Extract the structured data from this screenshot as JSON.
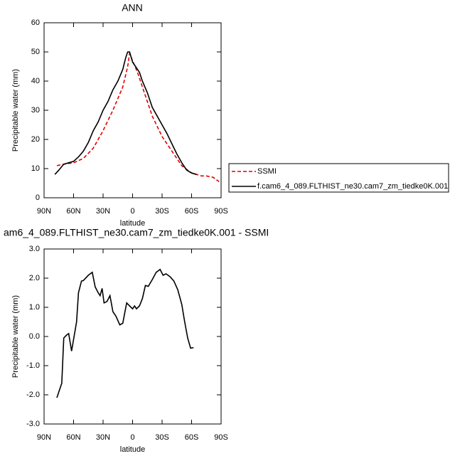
{
  "chart_data": [
    {
      "type": "line",
      "title": "ANN",
      "ylabel": "Precipitable water (mm)",
      "xlabel": "latitude",
      "xlim": [
        90,
        -90
      ],
      "ylim": [
        0,
        60
      ],
      "xticks": [
        {
          "value": 90,
          "label": "90N"
        },
        {
          "value": 60,
          "label": "60N"
        },
        {
          "value": 30,
          "label": "30N"
        },
        0,
        {
          "value": -30,
          "label": "30S"
        },
        {
          "value": -60,
          "label": "60S"
        },
        {
          "value": -90,
          "label": "90S"
        }
      ],
      "yticks": [
        0,
        10,
        20,
        30,
        40,
        50,
        60
      ],
      "series": [
        {
          "name": "SSMI",
          "color": "#e00000",
          "dashed": true,
          "x": [
            77,
            70,
            60,
            50,
            40,
            30,
            20,
            10,
            5,
            3,
            0,
            -5,
            -10,
            -20,
            -30,
            -40,
            -50,
            -60,
            -65,
            -70,
            -75,
            -82,
            -88
          ],
          "values": [
            11,
            11.5,
            12,
            13.5,
            17,
            23,
            30,
            38,
            45,
            49.5,
            47,
            43,
            38,
            28,
            21,
            16,
            11,
            8.5,
            8,
            7.5,
            7.5,
            7,
            5.5
          ]
        },
        {
          "name": "f.cam6_4_089.FLTHIST_ne30.cam7_zm_tiedke0K.001",
          "color": "#000000",
          "dashed": false,
          "x": [
            79,
            75,
            70,
            65,
            60,
            55,
            50,
            45,
            40,
            35,
            30,
            25,
            20,
            15,
            10,
            7,
            5,
            3,
            0,
            -3,
            -7,
            -10,
            -15,
            -20,
            -25,
            -30,
            -35,
            -40,
            -45,
            -50,
            -55,
            -60,
            -65
          ],
          "values": [
            8,
            9.5,
            11.5,
            12,
            12.5,
            14,
            16,
            19,
            23,
            26,
            30,
            33,
            37,
            40,
            44,
            48,
            50,
            50,
            46.5,
            45,
            43,
            40,
            36,
            31,
            28,
            25,
            22,
            18.5,
            15,
            12,
            9.5,
            8.5,
            8
          ]
        }
      ]
    },
    {
      "type": "line",
      "title": "am6_4_089.FLTHIST_ne30.cam7_zm_tiedke0K.001 - SSMI",
      "ylabel": "Precipitable water (mm)",
      "xlabel": "latitude",
      "xlim": [
        90,
        -90
      ],
      "ylim": [
        -3,
        3
      ],
      "xticks": [
        {
          "value": 90,
          "label": "90N"
        },
        {
          "value": 60,
          "label": "60N"
        },
        {
          "value": 30,
          "label": "30N"
        },
        0,
        {
          "value": -30,
          "label": "30S"
        },
        {
          "value": -60,
          "label": "60S"
        },
        {
          "value": -90,
          "label": "90S"
        }
      ],
      "yticks": [
        {
          "value": -3,
          "label": "-3.0"
        },
        {
          "value": -2,
          "label": "-2.0"
        },
        {
          "value": -1,
          "label": "-1.0"
        },
        {
          "value": 0,
          "label": "0.0"
        },
        {
          "value": 1,
          "label": "1.0"
        },
        {
          "value": 2,
          "label": "2.0"
        },
        {
          "value": 3,
          "label": "3.0"
        }
      ],
      "color": "#000000",
      "x": [
        77,
        72,
        70,
        67,
        65,
        62,
        57,
        55,
        52,
        50,
        45,
        41,
        38,
        35,
        33,
        31,
        29,
        26,
        23,
        20,
        17,
        13,
        10,
        8,
        6,
        3,
        0,
        -2,
        -4,
        -7,
        -10,
        -13,
        -16,
        -20,
        -24,
        -28,
        -31,
        -34,
        -38,
        -42,
        -46,
        -50,
        -53,
        -56,
        -59,
        -62
      ],
      "values": [
        -2.1,
        -1.6,
        -0.05,
        0.05,
        0.1,
        -0.5,
        0.5,
        1.5,
        1.9,
        1.92,
        2.1,
        2.2,
        1.7,
        1.5,
        1.4,
        1.65,
        1.15,
        1.2,
        1.4,
        0.85,
        0.7,
        0.4,
        0.45,
        0.8,
        1.15,
        1.05,
        0.95,
        1.05,
        0.95,
        1.05,
        1.3,
        1.75,
        1.72,
        1.95,
        2.2,
        2.3,
        2.1,
        2.15,
        2.05,
        1.9,
        1.6,
        1.1,
        0.5,
        -0.05,
        -0.4,
        -0.38
      ]
    }
  ]
}
